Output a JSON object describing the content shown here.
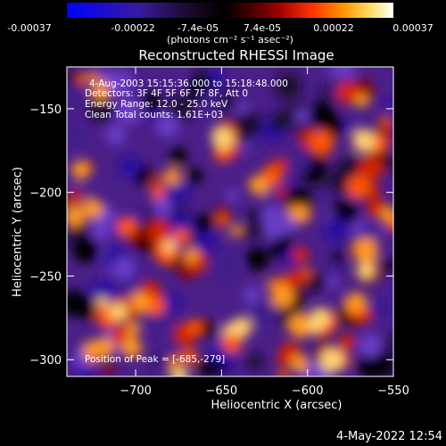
{
  "colorbar": {
    "ticks": [
      "-0.00037",
      "-0.00022",
      "-7.4e-05",
      "7.4e-05",
      "0.00022",
      "0.00037"
    ],
    "unit_label": "(photons cm⁻² s⁻¹ asec⁻²)"
  },
  "chart_data": {
    "type": "heatmap",
    "title": "Reconstructed RHESSI Image",
    "xlabel": "Heliocentric X (arcsec)",
    "ylabel": "Heliocentric Y (arcsec)",
    "xlim": [
      -740,
      -550
    ],
    "ylim": [
      -310,
      -125
    ],
    "xticks": [
      -700,
      -650,
      -600,
      -550
    ],
    "yticks": [
      -150,
      -200,
      -250,
      -300
    ],
    "color_range": [
      -0.00037,
      0.00037
    ],
    "colormap": [
      "#0000ff",
      "#5500aa",
      "#000000",
      "#aa0000",
      "#ff6600",
      "#ffff99"
    ],
    "peak": [
      -685,
      -279
    ],
    "annotations": [
      "4-Aug-2003 15:15:36.000 to 15:18:48.000",
      "Detectors: 3F 4F 5F 6F 7F 8F, Att 0",
      "Energy Range: 12.0 - 25.0 keV",
      "Clean     Total counts: 1.61E+03",
      "Position of Peak = [-685,-279]"
    ]
  },
  "datestamp": "4-May-2022 12:54"
}
